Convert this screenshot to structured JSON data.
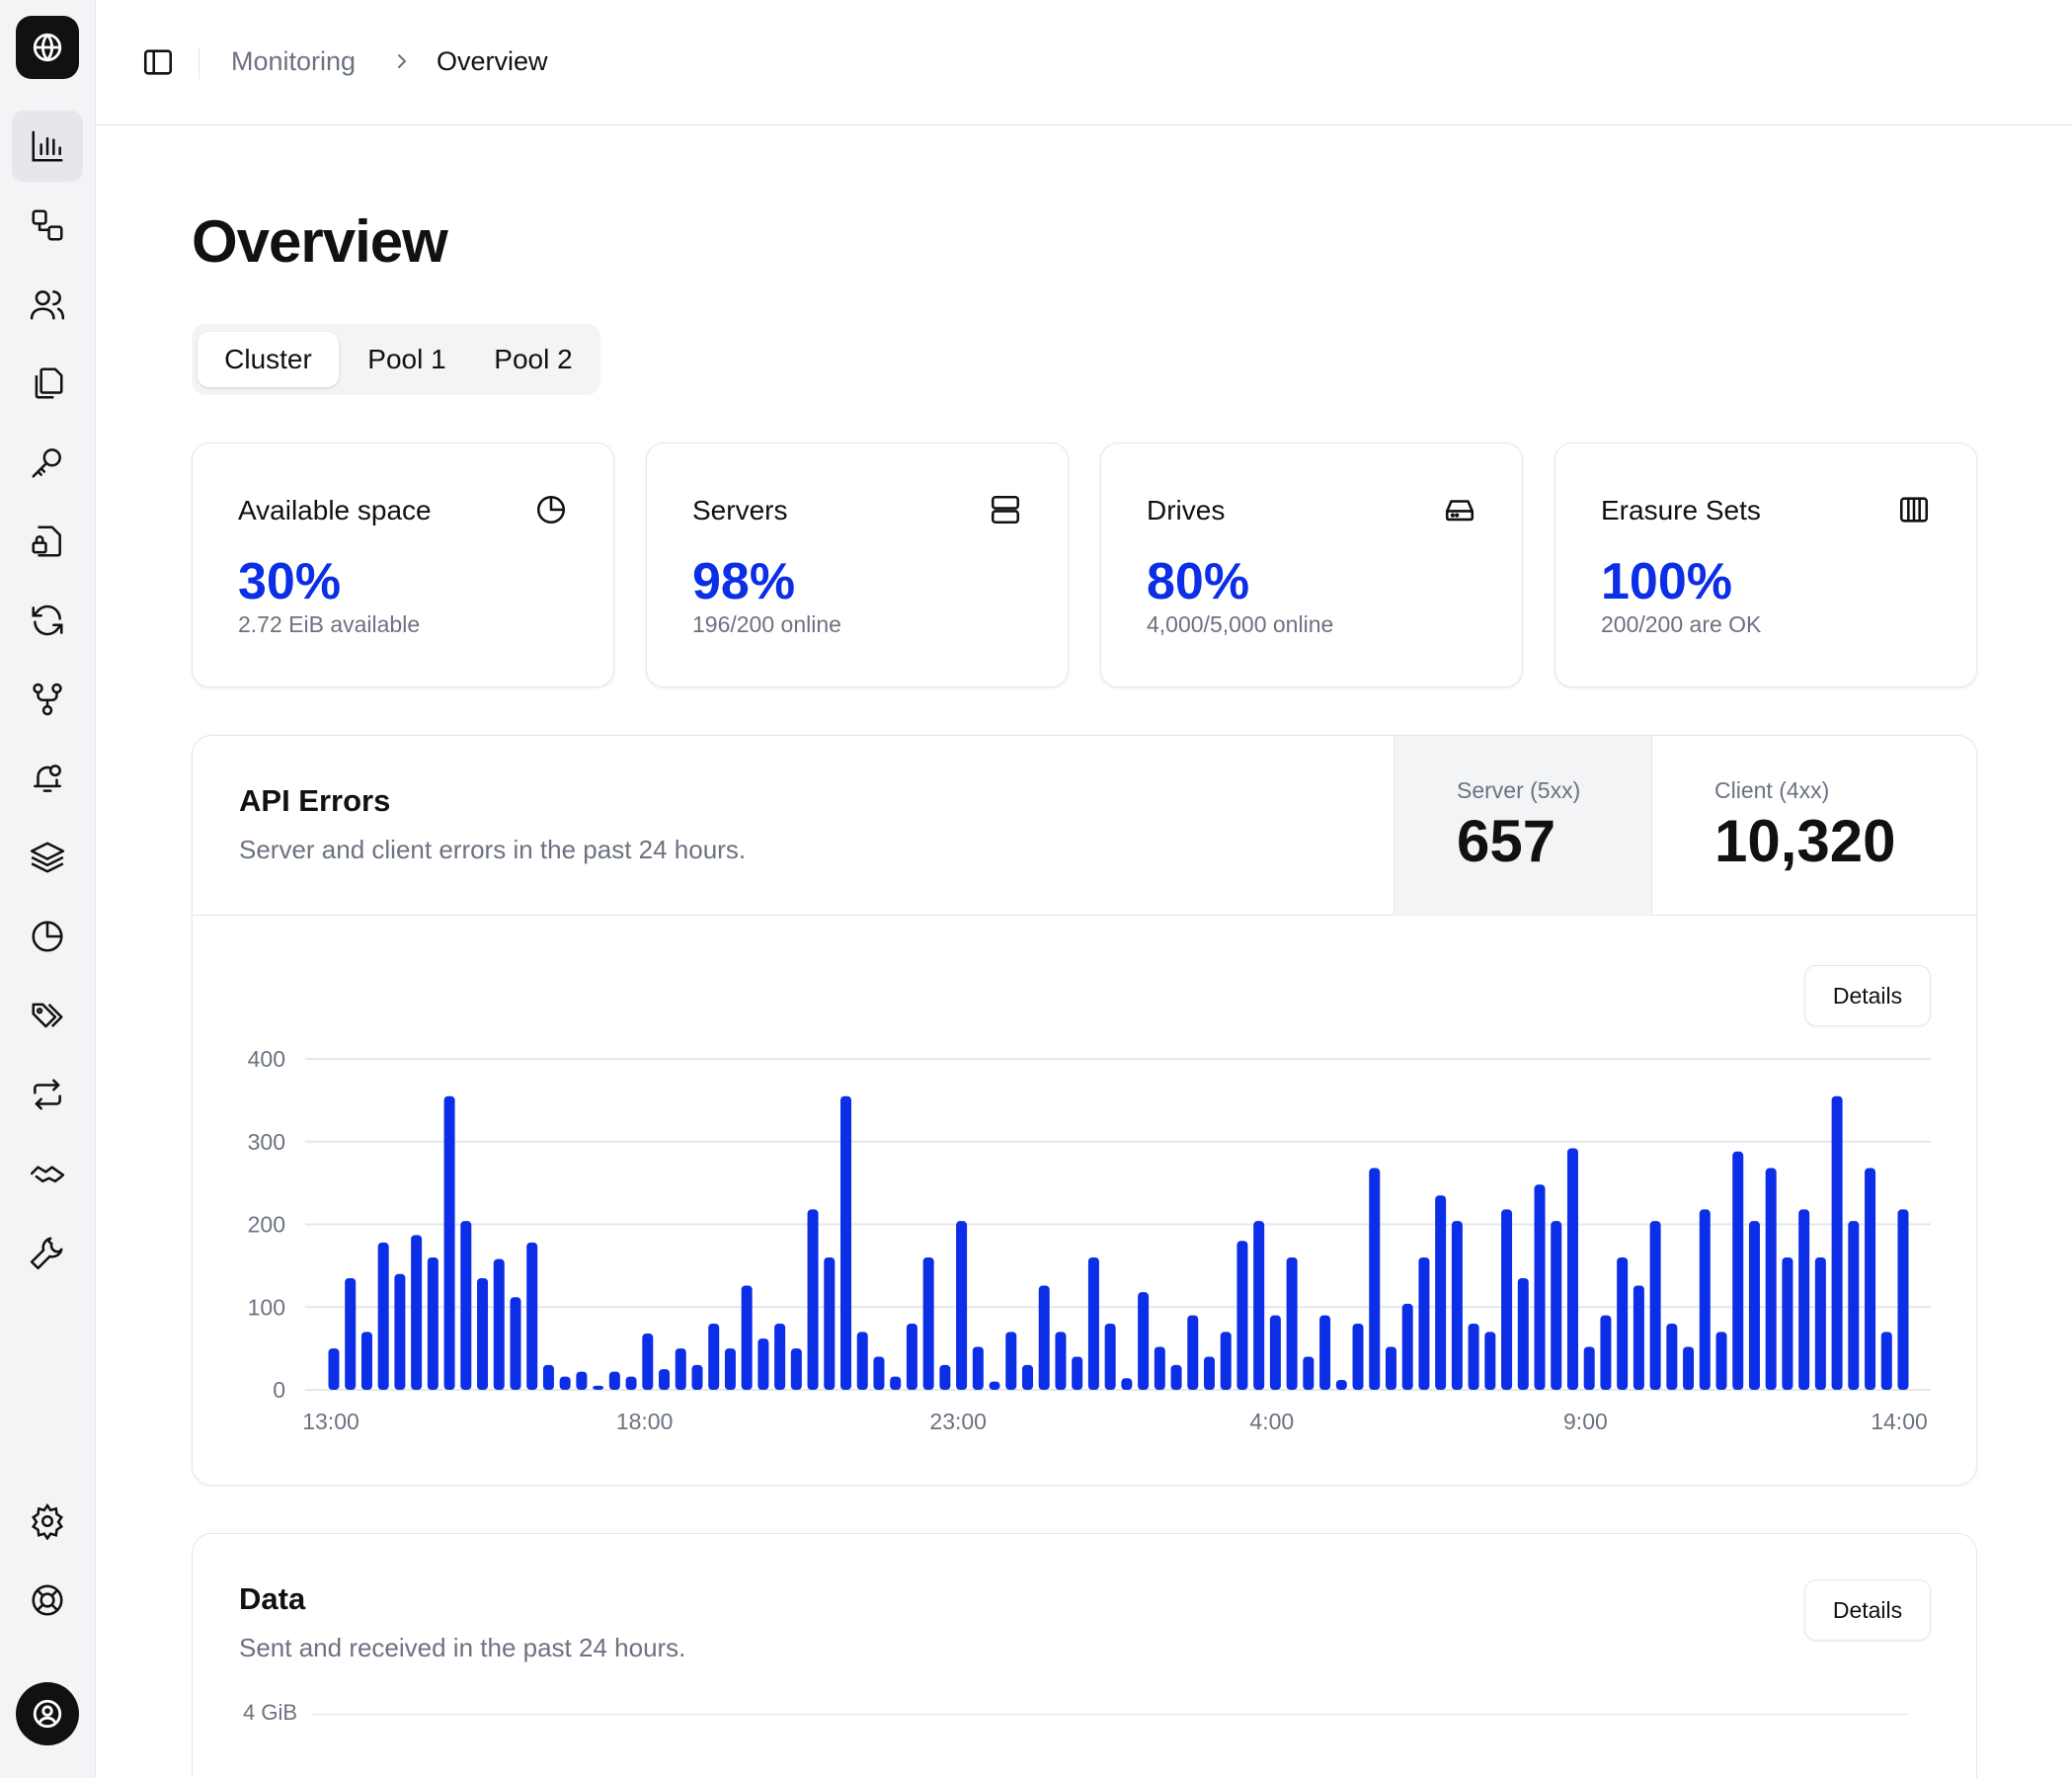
{
  "sidebar": {
    "logo_icon": "globe-icon",
    "items": [
      {
        "name": "monitoring",
        "icon": "bar-chart-icon",
        "active": true
      },
      {
        "name": "buckets",
        "icon": "shapes-icon"
      },
      {
        "name": "users",
        "icon": "users-icon"
      },
      {
        "name": "policies",
        "icon": "files-icon"
      },
      {
        "name": "access-keys",
        "icon": "key-icon"
      },
      {
        "name": "encryption",
        "icon": "file-lock-icon"
      },
      {
        "name": "replication",
        "icon": "refresh-icon"
      },
      {
        "name": "tiering",
        "icon": "git-fork-icon"
      },
      {
        "name": "notifications",
        "icon": "bell-icon"
      },
      {
        "name": "layers",
        "icon": "layers-icon"
      },
      {
        "name": "usage",
        "icon": "pie-chart-icon"
      },
      {
        "name": "tags",
        "icon": "tags-icon"
      },
      {
        "name": "transfers",
        "icon": "repeat-icon"
      },
      {
        "name": "support",
        "icon": "handshake-icon"
      },
      {
        "name": "tools",
        "icon": "wrench-icon"
      }
    ],
    "bottom": [
      {
        "name": "settings",
        "icon": "gear-icon"
      },
      {
        "name": "help",
        "icon": "life-buoy-icon"
      }
    ],
    "avatar_icon": "user-circle-icon"
  },
  "breadcrumb": {
    "parent": "Monitoring",
    "current": "Overview"
  },
  "page": {
    "title": "Overview"
  },
  "tabs": [
    {
      "label": "Cluster",
      "active": true
    },
    {
      "label": "Pool 1"
    },
    {
      "label": "Pool 2"
    }
  ],
  "stats": [
    {
      "label": "Available space",
      "value": "30%",
      "sub": "2.72 EiB available",
      "icon": "pie-chart-icon"
    },
    {
      "label": "Servers",
      "value": "98%",
      "sub": "196/200 online",
      "icon": "server-icon"
    },
    {
      "label": "Drives",
      "value": "80%",
      "sub": "4,000/5,000 online",
      "icon": "hard-drive-icon"
    },
    {
      "label": "Erasure Sets",
      "value": "100%",
      "sub": "200/200 are OK",
      "icon": "columns-icon"
    }
  ],
  "api_errors": {
    "title": "API Errors",
    "description": "Server and client errors in the past 24 hours.",
    "server_label": "Server (5xx)",
    "server_value": "657",
    "client_label": "Client (4xx)",
    "client_value": "10,320",
    "details_label": "Details"
  },
  "chart_data": {
    "type": "bar",
    "title": "",
    "xlabel": "",
    "ylabel": "",
    "ylim": [
      0,
      400
    ],
    "yticks": [
      "0",
      "100",
      "200",
      "300",
      "400"
    ],
    "xticks": [
      "13:00",
      "18:00",
      "23:00",
      "4:00",
      "9:00",
      "14:00"
    ],
    "grid": true,
    "color": "#0b2ee6",
    "series": [
      {
        "values": [
          50,
          135,
          70,
          178,
          140,
          187,
          160,
          355,
          204,
          135,
          158,
          112,
          178,
          30,
          16,
          22,
          5,
          22,
          16,
          68,
          25,
          50,
          30,
          80,
          50,
          126,
          62,
          80,
          50,
          218,
          160,
          355,
          70,
          40,
          16,
          80,
          160,
          30,
          204,
          52,
          10,
          70,
          30,
          126,
          70,
          40,
          160,
          80,
          14,
          118,
          52,
          30,
          90,
          40,
          70,
          180,
          204,
          90,
          160,
          40,
          90,
          12,
          80,
          268,
          52,
          104,
          160,
          235,
          204,
          80,
          70,
          218,
          135,
          248,
          204,
          292,
          52,
          90,
          160,
          126,
          204,
          80,
          52,
          218,
          70,
          288,
          204,
          268,
          160,
          218,
          160,
          355,
          204,
          268,
          70,
          218
        ]
      }
    ]
  },
  "data_card": {
    "title": "Data",
    "description": "Sent and received in the past 24 hours.",
    "details_label": "Details",
    "ytick_top": "4 GiB"
  }
}
